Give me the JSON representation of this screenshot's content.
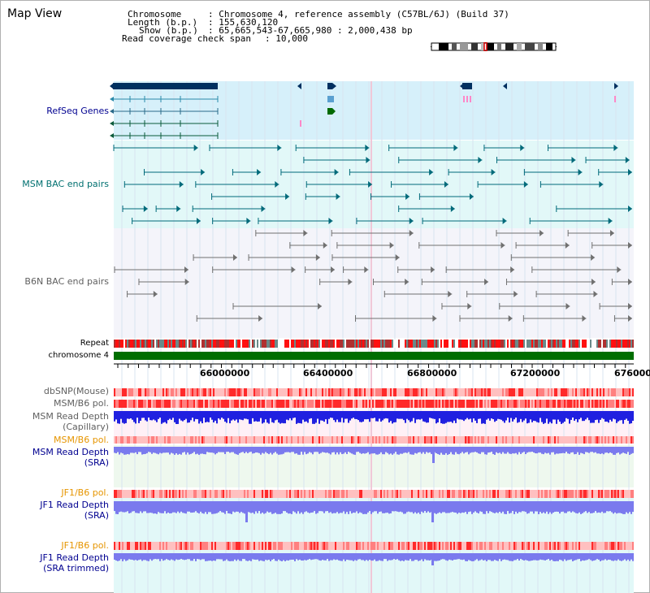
{
  "window": {
    "title": "Map View"
  },
  "info": {
    "chromosome_key": "Chromosome",
    "chromosome_value": ": Chromosome 4, reference assembly (C57BL/6J) (Build 37)",
    "length_key": "Length (b.p.)",
    "length_value": ": 155,630,120",
    "show_key": "Show (b.p.)",
    "show_value": ": 65,665,543-67,665,980 : 2,000,438 bp",
    "coverage_key": "Read coverage check span",
    "coverage_value": ": 10,000"
  },
  "tracks": {
    "refseq": "RefSeq Genes",
    "msm_bac": "MSM BAC end pairs",
    "b6n_bac": "B6N BAC end pairs",
    "repeat": "Repeat",
    "chromosome": "chromosome 4",
    "dbsnp": "dbSNP(Mouse)",
    "msm_b6_pol_1": "MSM/B6 pol.",
    "msm_depth_cap_1": "MSM Read Depth",
    "msm_depth_cap_2": "(Capillary)",
    "msm_b6_pol_2": "MSM/B6 pol.",
    "msm_depth_sra_1": "MSM Read Depth",
    "msm_depth_sra_2": "(SRA)",
    "jf1_pol_1": "JF1/B6 pol.",
    "jf1_depth_sra_1": "JF1 Read Depth",
    "jf1_depth_sra_2": "(SRA)",
    "jf1_pol_2": "JF1/B6 pol.",
    "jf1_depth_trim_1": "JF1 Read Depth",
    "jf1_depth_trim_2": "(SRA trimmed)"
  },
  "axis": {
    "ticks": [
      "66000000",
      "66400000",
      "66800000",
      "67200000",
      "676000"
    ]
  },
  "colors": {
    "refseq_bg": "#d6f0fa",
    "bac_bg": "#e2f8f8",
    "navy": "#003060",
    "teal": "#006a7a",
    "grey": "#707070",
    "chromosome": "#006e00",
    "depth_blue": "#2020e0",
    "depth_light": "#7a7aee"
  }
}
